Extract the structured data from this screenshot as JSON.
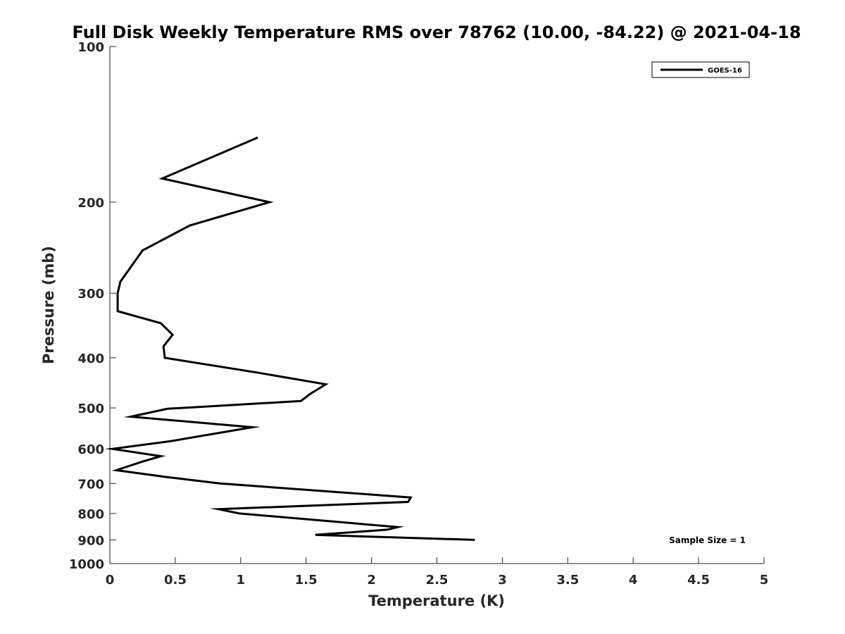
{
  "chart_data": {
    "type": "line",
    "title": "Full Disk Weekly Temperature RMS over 78762 (10.00, -84.22) @ 2021-04-18",
    "xlabel": "Temperature (K)",
    "ylabel": "Pressure (mb)",
    "xlim": [
      0,
      5
    ],
    "ylim": [
      100,
      1000
    ],
    "y_scale": "log",
    "y_direction": "reversed",
    "x_ticks": [
      0,
      0.5,
      1,
      1.5,
      2,
      2.5,
      3,
      3.5,
      4,
      4.5,
      5
    ],
    "x_tick_labels": [
      "0",
      "0.5",
      "1",
      "1.5",
      "2",
      "2.5",
      "3",
      "3.5",
      "4",
      "4.5",
      "5"
    ],
    "y_ticks": [
      100,
      200,
      300,
      400,
      500,
      600,
      700,
      800,
      900,
      1000
    ],
    "y_tick_labels": [
      "100",
      "200",
      "300",
      "400",
      "500",
      "600",
      "700",
      "800",
      "900",
      "1000"
    ],
    "grid": false,
    "legend": {
      "position": "top-right",
      "entries": [
        "GOES-16"
      ]
    },
    "annotation": "Sample Size = 1",
    "series": [
      {
        "name": "GOES-16",
        "color": "#000000",
        "x": [
          1.13,
          0.4,
          1.22,
          0.61,
          0.25,
          0.08,
          0.06,
          0.06,
          0.39,
          0.48,
          0.41,
          0.42,
          1.12,
          1.65,
          1.53,
          1.46,
          0.44,
          0.16,
          1.09,
          0.46,
          0.02,
          0.39,
          0.25,
          0.05,
          0.43,
          0.84,
          2.3,
          2.28,
          0.83,
          0.99,
          2.2,
          2.12,
          1.57,
          2.79
        ],
        "y": [
          150,
          180,
          200,
          222,
          248,
          285,
          300,
          325,
          343,
          361,
          380,
          400,
          427,
          450,
          470,
          485,
          502,
          520,
          545,
          580,
          600,
          620,
          635,
          660,
          680,
          700,
          745,
          760,
          785,
          800,
          850,
          860,
          880,
          900
        ]
      }
    ]
  }
}
